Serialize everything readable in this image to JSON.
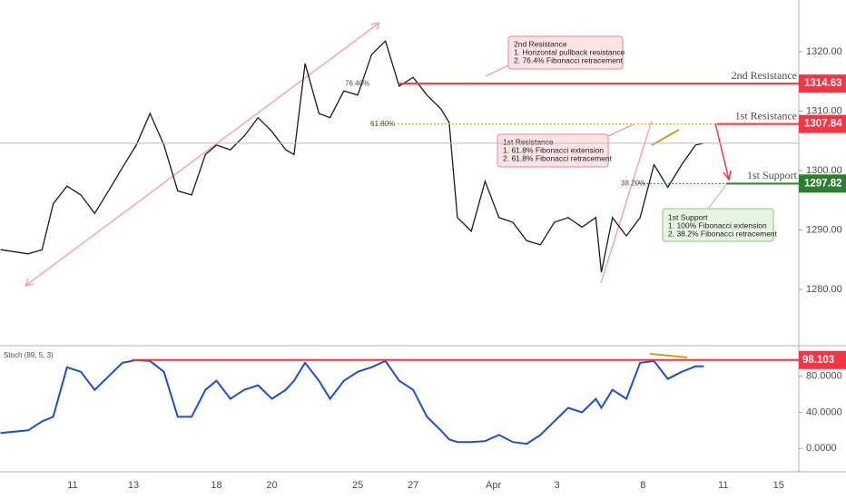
{
  "chart_data": [
    {
      "type": "line",
      "color": "#1a1a1a",
      "x": [
        -2.6,
        -1.6,
        -1.1,
        -0.7,
        -0.2,
        0.3,
        0.8,
        1.3,
        1.8,
        2.3,
        2.8,
        3.3,
        3.8,
        4.3,
        4.8,
        5.2,
        5.7,
        6.2,
        6.7,
        7.2,
        7.7,
        8.0,
        8.4,
        8.9,
        9.3,
        9.8,
        10.3,
        10.8,
        11.3,
        11.8,
        12.3,
        12.8,
        13.3,
        13.6,
        13.9,
        14.4,
        14.9,
        15.4,
        15.9,
        16.4,
        16.9,
        17.4,
        17.9,
        18.4,
        18.9,
        19.1,
        19.5,
        20.0,
        20.5,
        21.0,
        21.5,
        22.0,
        22.5,
        22.8
      ],
      "values": [
        1286.7,
        1286.0,
        1286.7,
        1294.4,
        1297.4,
        1295.9,
        1292.8,
        1296.6,
        1300.5,
        1304.3,
        1309.6,
        1304.3,
        1296.6,
        1295.9,
        1302.7,
        1304.3,
        1303.5,
        1305.8,
        1308.9,
        1306.6,
        1303.5,
        1302.7,
        1318.0,
        1309.6,
        1308.9,
        1313.4,
        1312.7,
        1319.5,
        1321.8,
        1314.2,
        1315.7,
        1312.7,
        1310.4,
        1308.1,
        1292.1,
        1289.8,
        1298.2,
        1292.1,
        1291.3,
        1288.2,
        1287.5,
        1291.3,
        1292.1,
        1290.5,
        1292.1,
        1282.9,
        1292.1,
        1289.0,
        1292.1,
        1301.0,
        1297.2,
        1301.0,
        1304.3,
        1304.6
      ],
      "xlim": [
        -2.62,
        26.23
      ],
      "xticks": [
        {
          "value": 0,
          "label": "11"
        },
        {
          "value": 2.2,
          "label": "13"
        },
        {
          "value": 5.2,
          "label": "18"
        },
        {
          "value": 7.2,
          "label": "20"
        },
        {
          "value": 10.3,
          "label": "25"
        },
        {
          "value": 12.3,
          "label": "27"
        },
        {
          "value": 15.2,
          "label": "Apr"
        },
        {
          "value": 17.5,
          "label": "3"
        },
        {
          "value": 20.6,
          "label": "8"
        },
        {
          "value": 23.5,
          "label": "11"
        },
        {
          "value": 25.5,
          "label": "15"
        }
      ],
      "ylim": [
        1270.7,
        1328.7
      ],
      "yticks": [
        {
          "value": 1280,
          "label": "1280.00"
        },
        {
          "value": 1290,
          "label": "1290.00"
        },
        {
          "value": 1300,
          "label": "1300.00"
        },
        {
          "value": 1310,
          "label": "1310.00"
        },
        {
          "value": 1320,
          "label": "1320.00"
        }
      ],
      "levels": [
        {
          "name": "2nd Resistance",
          "value": 1314.63,
          "color": "#f23645"
        },
        {
          "name": "1st Resistance",
          "value": 1307.84,
          "color": "#f23645"
        },
        {
          "name": "1st Support",
          "value": 1297.82,
          "color": "#2e7d32"
        }
      ],
      "fib_labels": [
        "76.40%",
        "61.80%",
        "38.20%"
      ],
      "annotations": [
        [
          "2nd Resistance",
          "1. Horizontal pullback resistance",
          "2. 76.4% Fibonacci retracement"
        ],
        [
          "1st Resistance",
          "1. 61.8% Fibonacci extension",
          "2. 61.8% Fibonacci retracement"
        ],
        [
          "1st Support",
          "1. 100% Fibonacci extension",
          "2. 38.2% Fibonacci retracement"
        ]
      ]
    },
    {
      "type": "line",
      "title": "Stoch (89, 5, 3)",
      "color": "#1e4fc2",
      "x": [
        -2.6,
        -1.6,
        -1.1,
        -0.7,
        -0.2,
        0.3,
        0.8,
        1.3,
        1.8,
        2.3,
        2.8,
        3.3,
        3.8,
        4.3,
        4.8,
        5.2,
        5.7,
        6.2,
        6.7,
        7.2,
        7.7,
        8.0,
        8.4,
        8.9,
        9.3,
        9.8,
        10.3,
        10.8,
        11.3,
        11.8,
        12.3,
        12.8,
        13.3,
        13.6,
        13.9,
        14.4,
        14.9,
        15.4,
        15.9,
        16.4,
        16.9,
        17.4,
        17.9,
        18.4,
        18.9,
        19.1,
        19.5,
        20.0,
        20.5,
        21.0,
        21.5,
        22.0,
        22.5,
        22.8
      ],
      "values": [
        17,
        20,
        30,
        35,
        90,
        85,
        65,
        80,
        95,
        98,
        97,
        85,
        35,
        35,
        65,
        75,
        55,
        65,
        70,
        55,
        65,
        75,
        95,
        75,
        55,
        75,
        85,
        90,
        97,
        75,
        65,
        35,
        20,
        10,
        7,
        7,
        8,
        15,
        7,
        5,
        15,
        30,
        45,
        40,
        55,
        45,
        65,
        55,
        95,
        97,
        77,
        85,
        91,
        91
      ],
      "ylim": [
        -26,
        113
      ],
      "yticks": [
        {
          "value": 0,
          "label": "0.0000"
        },
        {
          "value": 40,
          "label": "40.0000"
        },
        {
          "value": 80,
          "label": "80.0000"
        }
      ],
      "level": {
        "value": 98.103,
        "color": "#f23645"
      }
    }
  ]
}
